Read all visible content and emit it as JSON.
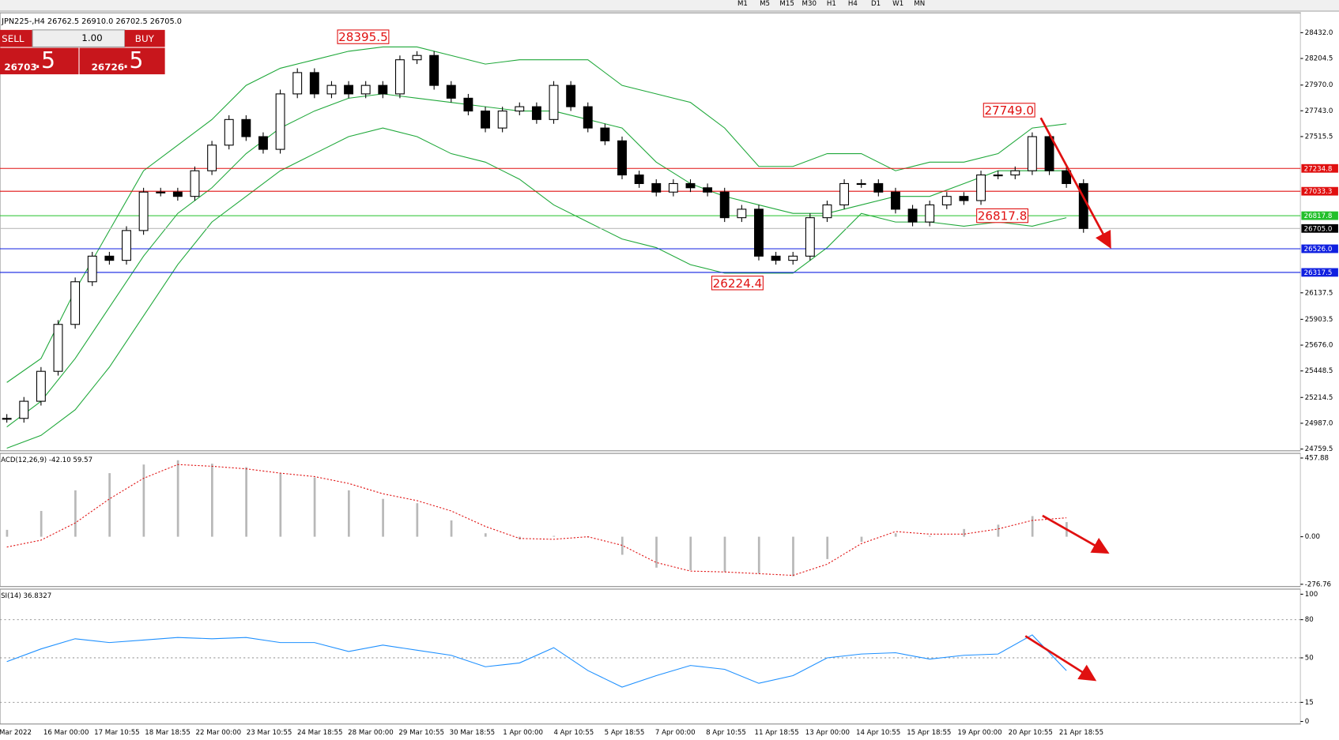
{
  "toolbar": {
    "timeframes": [
      "M1",
      "M5",
      "M15",
      "M30",
      "H1",
      "H4",
      "D1",
      "W1",
      "MN"
    ]
  },
  "symbol_header": "JPN225-,H4  26762.5 26910.0 26702.5 26705.0",
  "trade_panel": {
    "sell": "SELL",
    "lot": "1.00",
    "buy": "BUY",
    "bid_main": "26703",
    "bid_frac": ".5",
    "ask_main": "26726",
    "ask_frac": ".5"
  },
  "date_labels": [
    "Mar 2022",
    "16 Mar 00:00",
    "17 Mar 10:55",
    "18 Mar 18:55",
    "22 Mar 00:00",
    "23 Mar 10:55",
    "24 Mar 18:55",
    "28 Mar 00:00",
    "29 Mar 10:55",
    "30 Mar 18:55",
    "1 Apr 00:00",
    "4 Apr 10:55",
    "5 Apr 18:55",
    "7 Apr 00:00",
    "8 Apr 10:55",
    "11 Apr 18:55",
    "13 Apr 00:00",
    "14 Apr 10:55",
    "15 Apr 18:55",
    "19 Apr 00:00",
    "20 Apr 10:55",
    "21 Apr 18:55"
  ],
  "chart_data": [
    {
      "type": "candlestick",
      "ylim": [
        24744,
        28607
      ],
      "yticks": [
        {
          "value": 28432,
          "label": "28432.0"
        },
        {
          "value": 28204.5,
          "label": "28204.5"
        },
        {
          "value": 27970,
          "label": "27970.0"
        },
        {
          "value": 27743,
          "label": "27743.0"
        },
        {
          "value": 27515.5,
          "label": "27515.5"
        },
        {
          "value": 26137.5,
          "label": "26137.5"
        },
        {
          "value": 25903.5,
          "label": "25903.5"
        },
        {
          "value": 25676,
          "label": "25676.0"
        },
        {
          "value": 25448.5,
          "label": "25448.5"
        },
        {
          "value": 25214.5,
          "label": "25214.5"
        },
        {
          "value": 24987,
          "label": "24987.0"
        },
        {
          "value": 24759.5,
          "label": "24759.5"
        }
      ],
      "values": [
        25030,
        25181,
        25445,
        25859,
        26235,
        26461,
        26424,
        26687,
        27026,
        27026,
        26988,
        27214,
        27440,
        27666,
        27515,
        27403,
        27892,
        28080,
        27892,
        27967,
        27892,
        27967,
        27892,
        28193,
        28231,
        27967,
        27854,
        27741,
        27591,
        27741,
        27779,
        27666,
        27967,
        27779,
        27591,
        27478,
        27177,
        27101,
        27026,
        27101,
        27064,
        27026,
        26800,
        26875,
        26461,
        26424,
        26461,
        26800,
        26913,
        27101,
        27101,
        27026,
        26875,
        26762,
        26913,
        26988,
        26951,
        27177,
        27177,
        27214,
        27515,
        27214,
        27101,
        26705
      ],
      "band_color": "#1fa83a",
      "upper_band": [
        25347,
        25558,
        26160,
        26687,
        27214,
        27440,
        27666,
        27967,
        28118,
        28193,
        28268,
        28306,
        28306,
        28231,
        28155,
        28193,
        28193,
        28193,
        27967,
        27892,
        27817,
        27591,
        27252,
        27252,
        27365,
        27365,
        27214,
        27290,
        27290,
        27365,
        27591,
        27628
      ],
      "middle_band": [
        24955,
        25181,
        25558,
        26010,
        26461,
        26838,
        27064,
        27365,
        27591,
        27741,
        27854,
        27892,
        27854,
        27817,
        27779,
        27741,
        27741,
        27666,
        27591,
        27290,
        27101,
        26988,
        26913,
        26838,
        26838,
        26913,
        26988,
        26988,
        27101,
        27214,
        27214,
        27214
      ],
      "lower_band": [
        24767,
        24880,
        25106,
        25482,
        25934,
        26386,
        26762,
        26988,
        27214,
        27365,
        27515,
        27591,
        27515,
        27365,
        27290,
        27139,
        26913,
        26762,
        26612,
        26536,
        26386,
        26311,
        26311,
        26311,
        26536,
        26838,
        26762,
        26762,
        26725,
        26762,
        26725,
        26800
      ],
      "levels": [
        {
          "value": 27234.8,
          "color": "#e01010"
        },
        {
          "value": 27033.3,
          "color": "#e01010"
        },
        {
          "value": 26817.8,
          "color": "#22c02a"
        },
        {
          "value": 26705,
          "label": "26705.0",
          "color": "#000000"
        },
        {
          "value": 26526,
          "label": "26526.0",
          "color": "#1020e0"
        },
        {
          "value": 26317.5,
          "color": "#1020e0"
        }
      ],
      "annotations": [
        {
          "value": 28395.5
        },
        {
          "value": 27749,
          "label": "27749.0"
        },
        {
          "value": 26817.8
        },
        {
          "value": 26224.4
        }
      ]
    },
    {
      "type": "macd",
      "title": "ACD(12,26,9) -42.10 59.57",
      "ylim": [
        -290,
        485
      ],
      "yticks": [
        457.88,
        {
          "value": 0,
          "label": "0.00"
        },
        -276.76
      ],
      "histogram": [
        40,
        150,
        270,
        370,
        420,
        445,
        425,
        405,
        370,
        345,
        270,
        220,
        195,
        95,
        20,
        -15,
        5,
        -5,
        -105,
        -180,
        -195,
        -205,
        -215,
        -230,
        -130,
        -30,
        20,
        5,
        45,
        70,
        120,
        85
      ],
      "signal": [
        -60,
        -20,
        80,
        220,
        340,
        420,
        410,
        395,
        370,
        350,
        310,
        250,
        210,
        150,
        60,
        -10,
        -15,
        0,
        -50,
        -150,
        -200,
        -205,
        -215,
        -225,
        -160,
        -40,
        30,
        15,
        15,
        45,
        95,
        110
      ],
      "histogram_color": "#b8b8b8",
      "signal_color": "#e01010"
    },
    {
      "type": "rsi",
      "title": "SI(14) 36.8327",
      "ylim": [
        -2,
        104
      ],
      "yticks": [
        100,
        80,
        50,
        15,
        0
      ],
      "levels": [
        80,
        50,
        15
      ],
      "values": [
        47,
        57,
        65,
        62,
        64,
        66,
        65,
        66,
        62,
        62,
        55,
        60,
        56,
        52,
        43,
        46,
        58,
        40,
        27,
        36,
        44,
        41,
        30,
        36,
        50,
        53,
        54,
        49,
        52,
        53,
        68,
        40
      ],
      "color": "#1e90ff"
    }
  ]
}
